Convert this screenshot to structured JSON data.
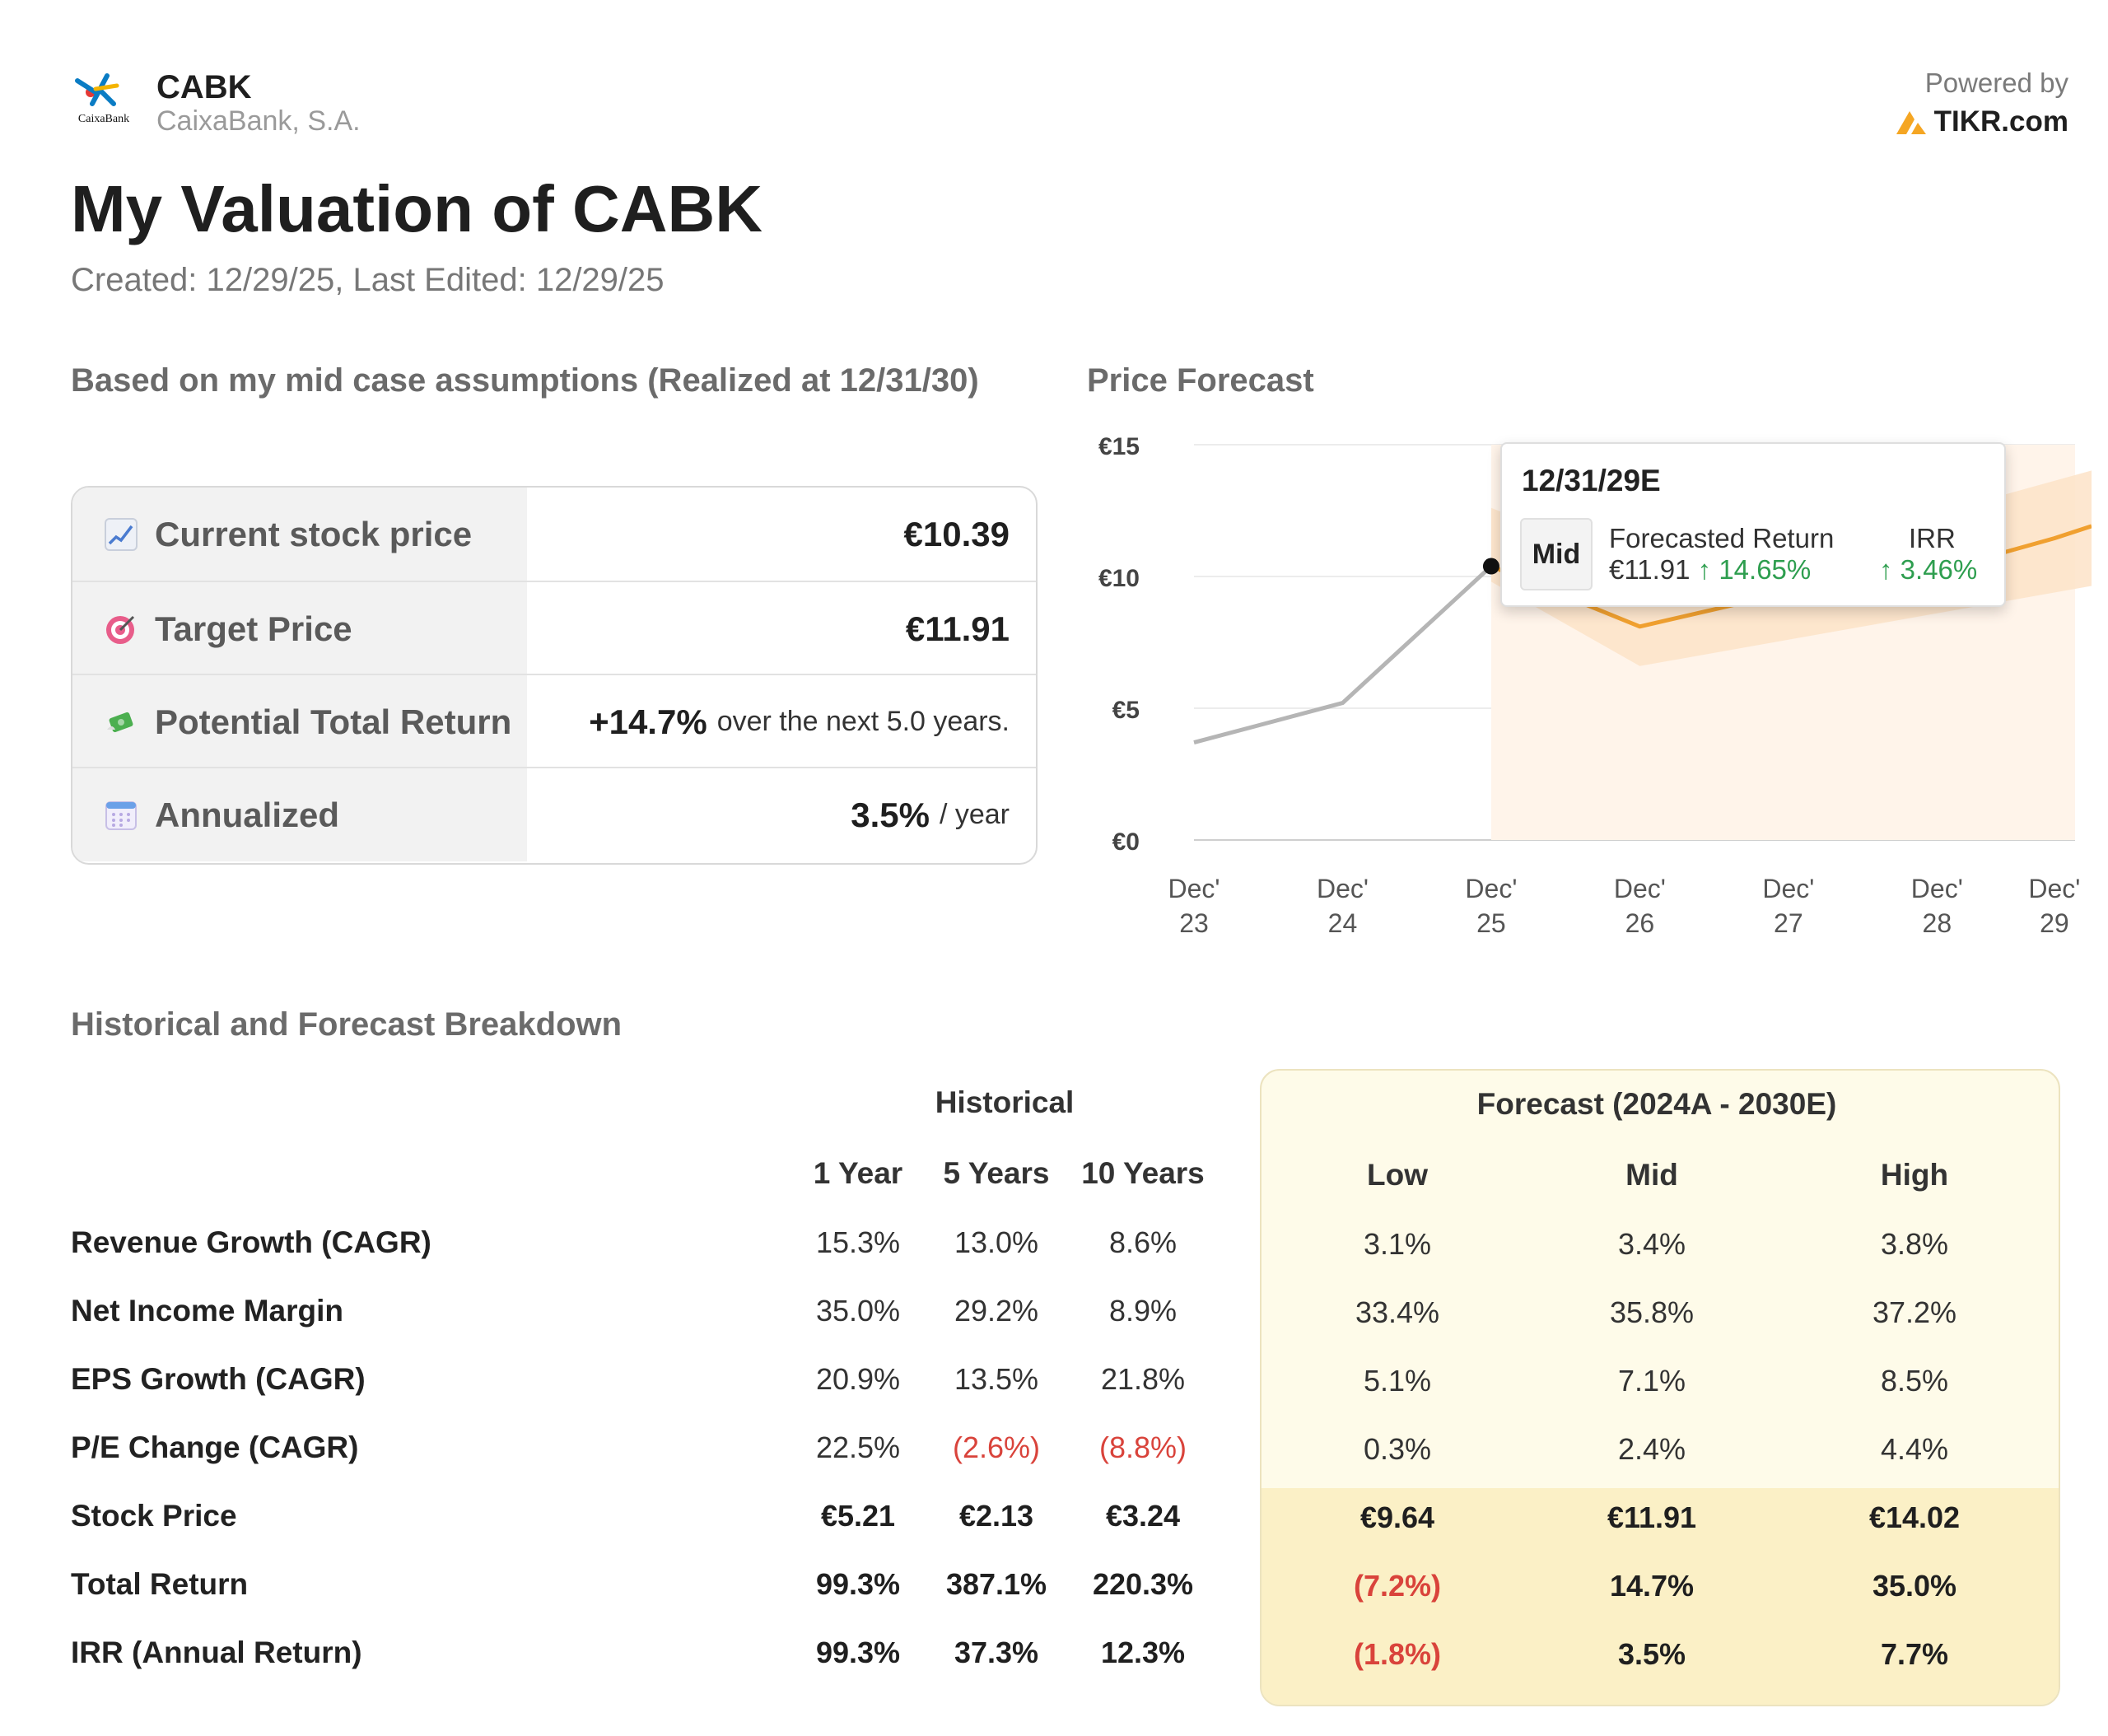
{
  "header": {
    "ticker": "CABK",
    "company": "CaixaBank, S.A.",
    "logo_text": "CaixaBank",
    "powered_by": "Powered by",
    "brand": "TIKR.com"
  },
  "title": "My Valuation of CABK",
  "dates": "Created: 12/29/25, Last Edited: 12/29/25",
  "summary": {
    "heading": "Based on my mid case assumptions (Realized at 12/31/30)",
    "rows": [
      {
        "icon": "chart-increasing-icon",
        "label": "Current stock price",
        "value": "€10.39",
        "suffix": ""
      },
      {
        "icon": "target-icon",
        "label": "Target Price",
        "value": "€11.91",
        "suffix": ""
      },
      {
        "icon": "money-with-wings-icon",
        "label": "Potential Total Return",
        "value": "+14.7%",
        "suffix": "over the next 5.0 years."
      },
      {
        "icon": "calendar-icon",
        "label": "Annualized",
        "value": "3.5%",
        "suffix": "/ year"
      }
    ]
  },
  "chart": {
    "heading": "Price Forecast",
    "tooltip": {
      "date": "12/31/29E",
      "case": "Mid",
      "return_label": "Forecasted Return",
      "price": "€11.91",
      "return_value": "↑ 14.65%",
      "irr_label": "IRR",
      "irr_value": "↑ 3.46%"
    }
  },
  "chart_data": {
    "type": "line",
    "title": "Price Forecast",
    "x_ticks": [
      "Dec' 23",
      "Dec' 24",
      "Dec' 25",
      "Dec' 26",
      "Dec' 27",
      "Dec' 28",
      "Dec' 29"
    ],
    "y_ticks": [
      "€0",
      "€5",
      "€10",
      "€15"
    ],
    "ylim": [
      0,
      15
    ],
    "grid": true,
    "series": [
      {
        "role": "historical",
        "color": "#b5b5b5",
        "x": [
          2023.96,
          2024.96,
          2025.96
        ],
        "values": [
          3.7,
          5.2,
          10.39
        ]
      },
      {
        "role": "forecast-mid",
        "color": "#f0a030",
        "x": [
          2025.96,
          2026.96,
          2027.96,
          2028.96,
          2029.75,
          2030.0
        ],
        "values": [
          10.39,
          8.1,
          9.4,
          10.2,
          11.45,
          11.91
        ]
      }
    ],
    "band": {
      "color": "#fde3c8",
      "x": [
        2025.96,
        2026.96,
        2027.96,
        2028.96,
        2030.0
      ],
      "low": [
        9.8,
        6.6,
        7.6,
        8.6,
        9.64
      ],
      "high": [
        12.6,
        10.4,
        11.6,
        12.4,
        14.02
      ]
    }
  },
  "breakdown": {
    "heading": "Historical and Forecast Breakdown",
    "historical_label": "Historical",
    "forecast_label": "Forecast (2024A - 2030E)",
    "historical_cols": [
      "1 Year",
      "5 Years",
      "10 Years"
    ],
    "forecast_cols": [
      "Low",
      "Mid",
      "High"
    ],
    "rows": [
      {
        "label": "Revenue Growth (CAGR)",
        "bold": false,
        "hist": [
          "15.3%",
          "13.0%",
          "8.6%"
        ],
        "fc": [
          "3.1%",
          "3.4%",
          "3.8%"
        ]
      },
      {
        "label": "Net Income Margin",
        "bold": false,
        "hist": [
          "35.0%",
          "29.2%",
          "8.9%"
        ],
        "fc": [
          "33.4%",
          "35.8%",
          "37.2%"
        ]
      },
      {
        "label": "EPS Growth (CAGR)",
        "bold": false,
        "hist": [
          "20.9%",
          "13.5%",
          "21.8%"
        ],
        "fc": [
          "5.1%",
          "7.1%",
          "8.5%"
        ]
      },
      {
        "label": "P/E Change (CAGR)",
        "bold": false,
        "hist": [
          "22.5%",
          "(2.6%)",
          "(8.8%)"
        ],
        "fc": [
          "0.3%",
          "2.4%",
          "4.4%"
        ]
      },
      {
        "label": "Stock Price",
        "bold": true,
        "hist": [
          "€5.21",
          "€2.13",
          "€3.24"
        ],
        "fc": [
          "€9.64",
          "€11.91",
          "€14.02"
        ]
      },
      {
        "label": "Total Return",
        "bold": true,
        "hist": [
          "99.3%",
          "387.1%",
          "220.3%"
        ],
        "fc": [
          "(7.2%)",
          "14.7%",
          "35.0%"
        ]
      },
      {
        "label": "IRR (Annual Return)",
        "bold": true,
        "hist": [
          "99.3%",
          "37.3%",
          "12.3%"
        ],
        "fc": [
          "(1.8%)",
          "3.5%",
          "7.7%"
        ]
      }
    ]
  },
  "colors": {
    "accent": "#f0a030",
    "negative": "#d9433b",
    "positive": "#2e9e4f",
    "forecast_bg": "#fefbe9"
  }
}
